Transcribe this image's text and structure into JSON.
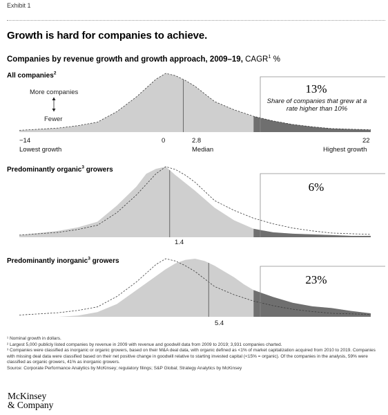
{
  "exhibit": "Exhibit 1",
  "headline": "Growth is hard for companies to achieve.",
  "subtitle": {
    "main": "Companies by revenue growth and growth approach, 2009–19,",
    "cagr": "CAGR",
    "cagr_sup": "1",
    "unit": "%"
  },
  "legend_arrow": {
    "more": "More companies",
    "fewer": "Fewer"
  },
  "axis": {
    "min_label": "−14",
    "min_caption": "Lowest growth",
    "zero_label": "0",
    "median_label": "2.8",
    "median_caption": "Median",
    "max_label": "22",
    "max_caption": "Highest growth"
  },
  "chart_data": [
    {
      "type": "area",
      "title": "All companies",
      "title_sup": "2",
      "x_range": [
        -14,
        22
      ],
      "median": 2.8,
      "median_label": "2.8",
      "threshold": 10,
      "callout_value": "13%",
      "callout_note": "Share of companies that grew at a rate higher than 10%",
      "series": [
        {
          "name": "",
          "x": [
            -14,
            -12,
            -10,
            -8,
            -6,
            -4,
            -2,
            -1,
            0,
            1,
            2,
            3,
            4,
            6,
            8,
            10,
            12,
            14,
            16,
            18,
            20,
            22
          ],
          "y": [
            0.03,
            0.05,
            0.07,
            0.11,
            0.17,
            0.35,
            0.6,
            0.75,
            0.9,
            1.0,
            0.96,
            0.88,
            0.78,
            0.52,
            0.38,
            0.27,
            0.19,
            0.13,
            0.09,
            0.06,
            0.05,
            0.04
          ]
        }
      ],
      "reference_series": null
    },
    {
      "type": "area",
      "title": "Predominantly organic",
      "title_sup": "3",
      "title_suffix": " growers",
      "x_range": [
        -14,
        22
      ],
      "median": 1.4,
      "median_label": "1.4",
      "threshold": 10,
      "callout_value": "6%",
      "series": [
        {
          "name": "",
          "x": [
            -14,
            -12,
            -10,
            -8,
            -6,
            -4,
            -2,
            -1,
            0,
            1,
            2,
            3,
            4,
            6,
            8,
            10,
            12,
            14,
            16,
            18,
            20,
            22
          ],
          "y": [
            0.03,
            0.06,
            0.09,
            0.14,
            0.22,
            0.45,
            0.72,
            0.9,
            0.97,
            1.0,
            0.88,
            0.77,
            0.66,
            0.42,
            0.24,
            0.12,
            0.07,
            0.05,
            0.04,
            0.03,
            0.02,
            0.02
          ]
        }
      ],
      "reference_series": {
        "x": [
          -14,
          -12,
          -10,
          -8,
          -6,
          -4,
          -2,
          -1,
          0,
          1,
          2,
          3,
          4,
          6,
          8,
          10,
          12,
          14,
          16,
          18,
          20,
          22
        ],
        "y": [
          0.03,
          0.05,
          0.07,
          0.11,
          0.17,
          0.35,
          0.6,
          0.75,
          0.9,
          1.0,
          0.96,
          0.88,
          0.78,
          0.52,
          0.38,
          0.27,
          0.19,
          0.13,
          0.09,
          0.06,
          0.05,
          0.04
        ]
      }
    },
    {
      "type": "area",
      "title": "Predominantly inorganic",
      "title_sup": "3",
      "title_suffix": " growers",
      "x_range": [
        -14,
        22
      ],
      "median": 5.4,
      "median_label": "5.4",
      "threshold": 10,
      "callout_value": "23%",
      "series": [
        {
          "name": "",
          "x": [
            -14,
            -10,
            -8,
            -6,
            -4,
            -2,
            0,
            1,
            2,
            3,
            4,
            5,
            6,
            7,
            8,
            9,
            10,
            12,
            14,
            16,
            18,
            20,
            22
          ],
          "y": [
            0.0,
            0.0,
            0.02,
            0.08,
            0.22,
            0.46,
            0.7,
            0.82,
            0.92,
            0.98,
            1.0,
            0.96,
            0.88,
            0.78,
            0.68,
            0.56,
            0.46,
            0.34,
            0.24,
            0.18,
            0.15,
            0.1,
            0.06
          ]
        }
      ],
      "reference_series": {
        "x": [
          -14,
          -12,
          -10,
          -8,
          -6,
          -4,
          -2,
          -1,
          0,
          1,
          2,
          3,
          4,
          6,
          8,
          10,
          12,
          14,
          16,
          18,
          20,
          22
        ],
        "y": [
          0.03,
          0.05,
          0.07,
          0.11,
          0.17,
          0.35,
          0.6,
          0.75,
          0.9,
          1.0,
          0.96,
          0.88,
          0.78,
          0.52,
          0.38,
          0.27,
          0.19,
          0.13,
          0.09,
          0.06,
          0.05,
          0.04
        ]
      }
    }
  ],
  "footnotes": [
    "¹ Nominal growth in dollars.",
    "² Largest 5,000 publicly listed companies by revenue in 2009 with revenue and goodwill data from 2009 to 2019; 3,931 companies charted.",
    "³ Companies were classified as inorganic or organic growers, based on their M&A deal data, with organic defined as <1% of market capitalization acquired from 2010 to 2019. Companies with missing deal data were classified based on their net positive change in goodwill relative to starting invested capital (<15% = organic). Of the companies in the analysis, 59% were classified as organic growers, 41% as inorganic growers.",
    "Source: Corporate Performance Analytics by McKinsey; regulatory filings; S&P Global; Strategy Analytics by McKinsey"
  ],
  "logo": {
    "line1": "McKinsey",
    "line2": "& Company"
  },
  "colors": {
    "area_fill": "#cfcfcf",
    "tail_fill": "#6f6f6f",
    "median_line": "#666666",
    "dashed_line": "#3a3a3a",
    "callout_border": "#8a8a8a"
  }
}
